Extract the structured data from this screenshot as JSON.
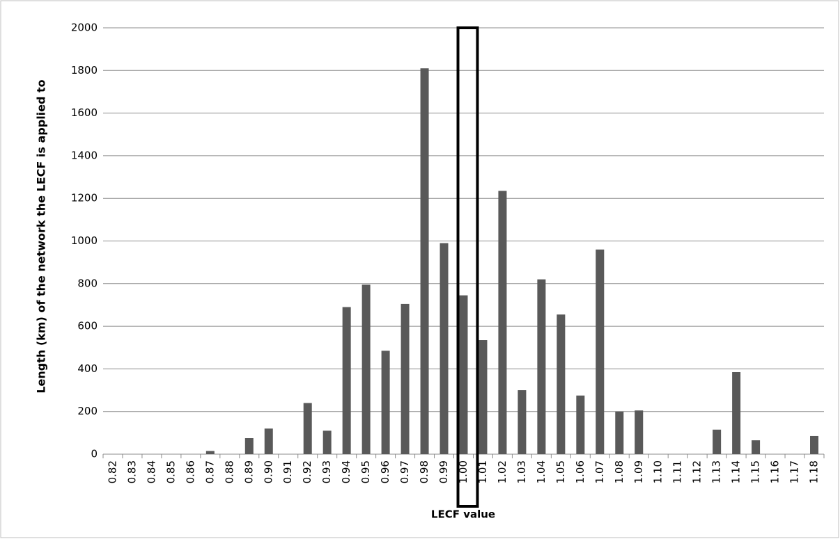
{
  "chart_data": {
    "type": "bar",
    "x_label": "LECF value",
    "y_label": "Length (km) of the network the LECF is applied to",
    "categories": [
      "0.82",
      "0.83",
      "0.84",
      "0.85",
      "0.86",
      "0.87",
      "0.88",
      "0.89",
      "0.90",
      "0.91",
      "0.92",
      "0.93",
      "0.94",
      "0.95",
      "0.96",
      "0.97",
      "0.98",
      "0.99",
      "1.00",
      "1.01",
      "1.02",
      "1.03",
      "1.04",
      "1.05",
      "1.06",
      "1.07",
      "1.08",
      "1.09",
      "1.10",
      "1.11",
      "1.12",
      "1.13",
      "1.14",
      "1.15",
      "1.16",
      "1.17",
      "1.18"
    ],
    "values": [
      0,
      0,
      0,
      0,
      0,
      15,
      0,
      75,
      120,
      0,
      240,
      110,
      690,
      795,
      485,
      705,
      1810,
      990,
      745,
      535,
      1235,
      300,
      820,
      655,
      275,
      960,
      200,
      205,
      0,
      0,
      0,
      115,
      385,
      65,
      0,
      0,
      85
    ],
    "color": "#595959",
    "ylim": [
      0,
      2000
    ],
    "yticks": [
      0,
      200,
      400,
      600,
      800,
      1000,
      1200,
      1400,
      1600,
      1800,
      2000
    ],
    "grid": true
  }
}
